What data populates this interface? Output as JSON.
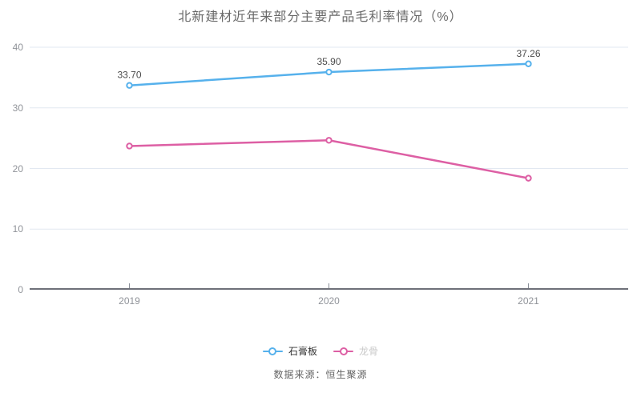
{
  "chart_data": {
    "type": "line",
    "title": "北新建材近年来部分主要产品毛利率情况（%）",
    "categories": [
      "2019",
      "2020",
      "2021"
    ],
    "series": [
      {
        "name": "石膏板",
        "values": [
          33.7,
          35.9,
          37.26
        ],
        "labels": [
          "33.70",
          "35.90",
          "37.26"
        ],
        "color": "#56b1ec"
      },
      {
        "name": "龙骨",
        "values": [
          23.7,
          24.65,
          18.4
        ],
        "labels": [],
        "color": "#dd5fa4"
      }
    ],
    "xlabel": "",
    "ylabel": "",
    "ylim": [
      0,
      40
    ],
    "yticks": [
      0,
      10,
      20,
      30,
      40
    ],
    "grid": true,
    "legend_position": "bottom",
    "colors": {
      "grid": "#e2e8f1",
      "axis_line": "#6e7079",
      "tick": "#8a8f99",
      "axis_label": "#909399",
      "value_label": "#4c4c4c"
    }
  },
  "legend": {
    "items": [
      {
        "label": "石膏板",
        "color": "#56b1ec",
        "label_color": "#333333"
      },
      {
        "label": "龙骨",
        "color": "#dd5fa4",
        "label_color": "#c9c9c9"
      }
    ]
  },
  "footer": {
    "source": "数据来源：恒生聚源"
  }
}
